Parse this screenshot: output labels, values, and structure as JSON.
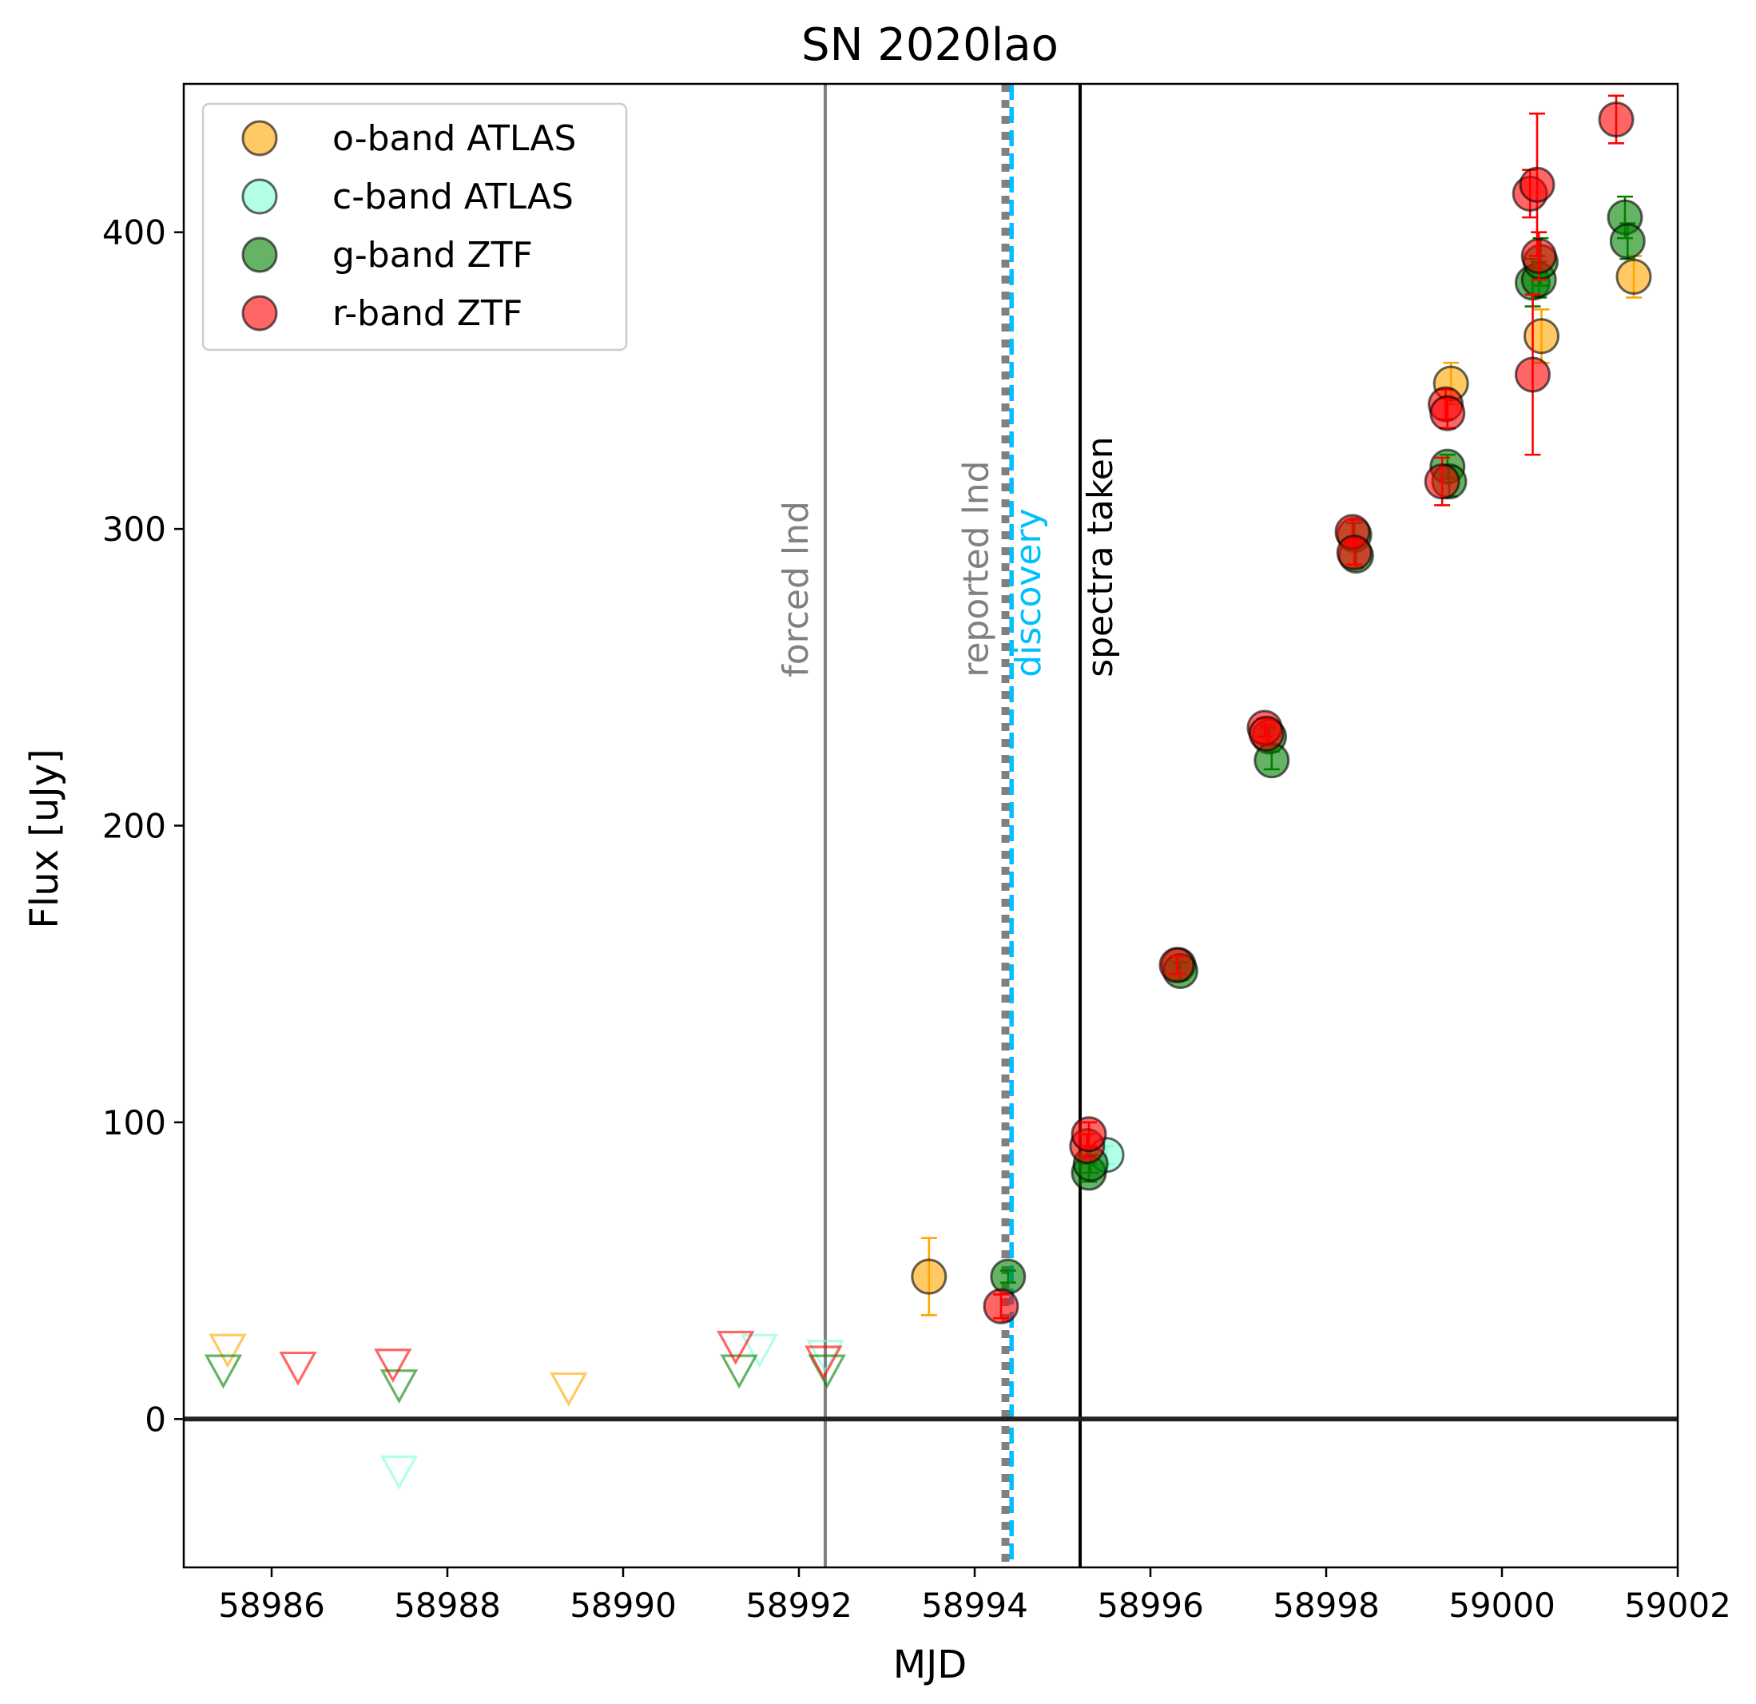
{
  "chart_data": {
    "type": "scatter",
    "title": "SN 2020lao",
    "xlabel": "MJD",
    "ylabel": "Flux [uJy]",
    "xlim": [
      58985,
      59002
    ],
    "ylim": [
      -50,
      450
    ],
    "grid": false,
    "legend_position": "top-left",
    "xticks": [
      58986,
      58988,
      58990,
      58992,
      58994,
      58996,
      58998,
      59000,
      59002
    ],
    "xtick_labels": [
      "58986",
      "58988",
      "58990",
      "58992",
      "58994",
      "58996",
      "58998",
      "59000",
      "59002"
    ],
    "yticks": [
      0,
      100,
      200,
      300,
      400
    ],
    "ytick_labels": [
      "0",
      "100",
      "200",
      "300",
      "400"
    ],
    "zero_line": 0,
    "vlines": [
      {
        "x": 58992.3,
        "label": "forced lnd",
        "color": "#808080",
        "style": "solid"
      },
      {
        "x": 58994.35,
        "label": "reported lnd",
        "color": "#808080",
        "style": "dotted"
      },
      {
        "x": 58994.42,
        "label": "discovery",
        "color": "#00bfff",
        "style": "dashed"
      },
      {
        "x": 58995.2,
        "label": "spectra taken",
        "color": "#000000",
        "style": "solid"
      }
    ],
    "series": [
      {
        "name": "o-band ATLAS",
        "color": "#ffa500",
        "detections": [
          {
            "x": 58993.48,
            "y": 48,
            "err": 13
          },
          {
            "x": 58999.42,
            "y": 349,
            "err": 7
          },
          {
            "x": 59000.45,
            "y": 365,
            "err": 9
          },
          {
            "x": 59001.5,
            "y": 385,
            "err": 7
          }
        ],
        "upper_limits": [
          {
            "x": 58985.5,
            "y": 24
          },
          {
            "x": 58989.38,
            "y": 11
          }
        ]
      },
      {
        "name": "c-band ATLAS",
        "color": "#7fffd4",
        "detections": [
          {
            "x": 58995.5,
            "y": 89,
            "err": 3
          }
        ],
        "upper_limits": [
          {
            "x": 58987.45,
            "y": -17
          },
          {
            "x": 58991.55,
            "y": 24
          },
          {
            "x": 58992.3,
            "y": 22
          }
        ]
      },
      {
        "name": "g-band ZTF",
        "color": "#008000",
        "detections": [
          {
            "x": 58994.38,
            "y": 48,
            "err": 2
          },
          {
            "x": 58995.3,
            "y": 83,
            "err": 3
          },
          {
            "x": 58995.32,
            "y": 86,
            "err": 3
          },
          {
            "x": 58996.32,
            "y": 153,
            "err": 3
          },
          {
            "x": 58996.34,
            "y": 151,
            "err": 3
          },
          {
            "x": 58997.35,
            "y": 230,
            "err": 3
          },
          {
            "x": 58997.38,
            "y": 222,
            "err": 3
          },
          {
            "x": 58998.32,
            "y": 298,
            "err": 4
          },
          {
            "x": 58998.34,
            "y": 291,
            "err": 4
          },
          {
            "x": 58999.38,
            "y": 321,
            "err": 4
          },
          {
            "x": 58999.4,
            "y": 316,
            "err": 5
          },
          {
            "x": 59000.35,
            "y": 383,
            "err": 8
          },
          {
            "x": 59000.42,
            "y": 384,
            "err": 6
          },
          {
            "x": 59000.44,
            "y": 390,
            "err": 8
          },
          {
            "x": 59001.4,
            "y": 405,
            "err": 7
          },
          {
            "x": 59001.43,
            "y": 397,
            "err": 6
          }
        ],
        "upper_limits": [
          {
            "x": 58985.45,
            "y": 17
          },
          {
            "x": 58987.45,
            "y": 12
          },
          {
            "x": 58991.32,
            "y": 17
          },
          {
            "x": 58992.32,
            "y": 17
          }
        ]
      },
      {
        "name": "r-band ZTF",
        "color": "#ff0000",
        "detections": [
          {
            "x": 58994.3,
            "y": 38,
            "err": 4
          },
          {
            "x": 58995.28,
            "y": 92,
            "err": 4
          },
          {
            "x": 58995.3,
            "y": 96,
            "err": 4
          },
          {
            "x": 58996.3,
            "y": 153,
            "err": 3
          },
          {
            "x": 58997.3,
            "y": 233,
            "err": 3
          },
          {
            "x": 58997.32,
            "y": 231,
            "err": 3
          },
          {
            "x": 58998.3,
            "y": 299,
            "err": 4
          },
          {
            "x": 58998.32,
            "y": 292,
            "err": 4
          },
          {
            "x": 58999.32,
            "y": 316,
            "err": 8
          },
          {
            "x": 58999.36,
            "y": 342,
            "err": 5
          },
          {
            "x": 58999.38,
            "y": 339,
            "err": 5
          },
          {
            "x": 59000.32,
            "y": 413,
            "err": 8
          },
          {
            "x": 59000.35,
            "y": 352,
            "err": 27
          },
          {
            "x": 59000.4,
            "y": 416,
            "err": 24
          },
          {
            "x": 59000.42,
            "y": 392,
            "err": 8
          },
          {
            "x": 59001.3,
            "y": 438,
            "err": 8
          }
        ],
        "upper_limits": [
          {
            "x": 58986.3,
            "y": 18
          },
          {
            "x": 58987.38,
            "y": 19
          },
          {
            "x": 58991.28,
            "y": 25
          },
          {
            "x": 58992.28,
            "y": 20
          }
        ]
      }
    ]
  }
}
